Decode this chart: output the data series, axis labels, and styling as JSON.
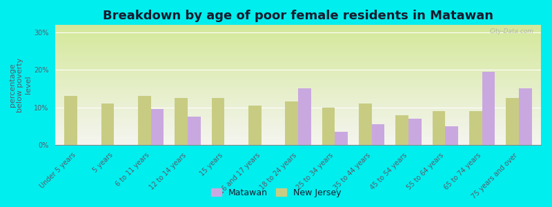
{
  "title": "Breakdown by age of poor female residents in Matawan",
  "ylabel": "percentage\nbelow poverty\nlevel",
  "categories": [
    "Under 5 years",
    "5 years",
    "6 to 11 years",
    "12 to 14 years",
    "15 years",
    "16 and 17 years",
    "18 to 24 years",
    "25 to 34 years",
    "35 to 44 years",
    "45 to 54 years",
    "55 to 64 years",
    "65 to 74 years",
    "75 years and over"
  ],
  "matawan_values": [
    0,
    0,
    9.5,
    7.5,
    0,
    0,
    15.0,
    3.5,
    5.5,
    7.0,
    5.0,
    19.5,
    15.0
  ],
  "nj_values": [
    13.0,
    11.0,
    13.0,
    12.5,
    12.5,
    10.5,
    11.5,
    10.0,
    11.0,
    8.0,
    9.0,
    9.0,
    12.5
  ],
  "matawan_color": "#c9a8e0",
  "nj_color": "#c8cc82",
  "plot_bg_bottom": "#d4e89a",
  "plot_bg_top": "#f5f5f0",
  "ylim": [
    0,
    32
  ],
  "yticks": [
    0,
    10,
    20,
    30
  ],
  "ytick_labels": [
    "0%",
    "10%",
    "20%",
    "30%"
  ],
  "bar_width": 0.35,
  "title_fontsize": 13,
  "axis_label_fontsize": 8,
  "tick_fontsize": 7,
  "legend_fontsize": 9,
  "tick_color": "#5a5a6a",
  "watermark": "City-Data.com",
  "figure_bg": "#00eeee"
}
